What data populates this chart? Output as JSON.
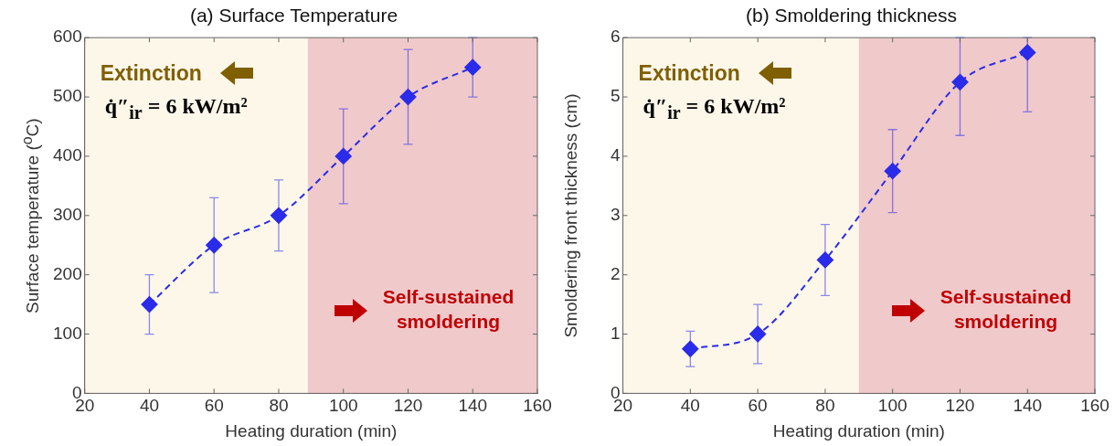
{
  "chart_data": [
    {
      "type": "line",
      "title": "(a) Surface Temperature",
      "xlabel": "Heating duration (min)",
      "ylabel": "Surface temperature ($^{o}$C)",
      "x": [
        40,
        60,
        80,
        100,
        120,
        140
      ],
      "series": [
        {
          "color": "#2b2bea",
          "values": [
            150,
            250,
            300,
            400,
            500,
            550
          ],
          "errors": [
            [
              100,
              200
            ],
            [
              170,
              330
            ],
            [
              240,
              360
            ],
            [
              320,
              480
            ],
            [
              420,
              580
            ],
            [
              500,
              600
            ]
          ]
        }
      ],
      "xlim": [
        20,
        160
      ],
      "xticks": [
        20,
        40,
        60,
        80,
        100,
        120,
        140,
        160
      ],
      "ylim": [
        0,
        600
      ],
      "yticks": [
        0,
        100,
        200,
        300,
        400,
        500,
        600
      ],
      "bands": [
        {
          "axis": "x",
          "from": 20,
          "to": 89,
          "label": "Extinction",
          "color": "#fdf7ea"
        },
        {
          "axis": "x",
          "from": 89,
          "to": 160,
          "label": "Self-sustained smoldering",
          "color": "#f0c9cb"
        }
      ],
      "annotations": [
        "q̇″$_{ir}$ = 6 kW/m²"
      ],
      "marker": "diamond",
      "line_style": "dashed",
      "grid": false,
      "legend": false
    },
    {
      "type": "line",
      "title": "(b) Smoldering thickness",
      "xlabel": "Heating duration (min)",
      "ylabel": "Smoldering front thickness (cm)",
      "x": [
        40,
        60,
        80,
        100,
        120,
        140
      ],
      "series": [
        {
          "color": "#2b2bea",
          "values": [
            0.75,
            1.0,
            2.25,
            3.75,
            5.25,
            5.75
          ],
          "errors": [
            [
              0.45,
              1.05
            ],
            [
              0.5,
              1.5
            ],
            [
              1.65,
              2.85
            ],
            [
              3.05,
              4.45
            ],
            [
              4.35,
              6
            ],
            [
              4.75,
              6
            ]
          ]
        }
      ],
      "xlim": [
        20,
        160
      ],
      "xticks": [
        20,
        40,
        60,
        80,
        100,
        120,
        140,
        160
      ],
      "ylim": [
        0,
        6
      ],
      "yticks": [
        0,
        1,
        2,
        3,
        4,
        5,
        6
      ],
      "bands": [
        {
          "axis": "x",
          "from": 20,
          "to": 90,
          "label": "Extinction",
          "color": "#fdf7ea"
        },
        {
          "axis": "x",
          "from": 90,
          "to": 160,
          "label": "Self-sustained smoldering",
          "color": "#f0c9cb"
        }
      ],
      "annotations": [
        "q̇″$_{ir}$ = 6 kW/m²"
      ],
      "marker": "diamond",
      "line_style": "dashed",
      "grid": false,
      "legend": false
    }
  ]
}
